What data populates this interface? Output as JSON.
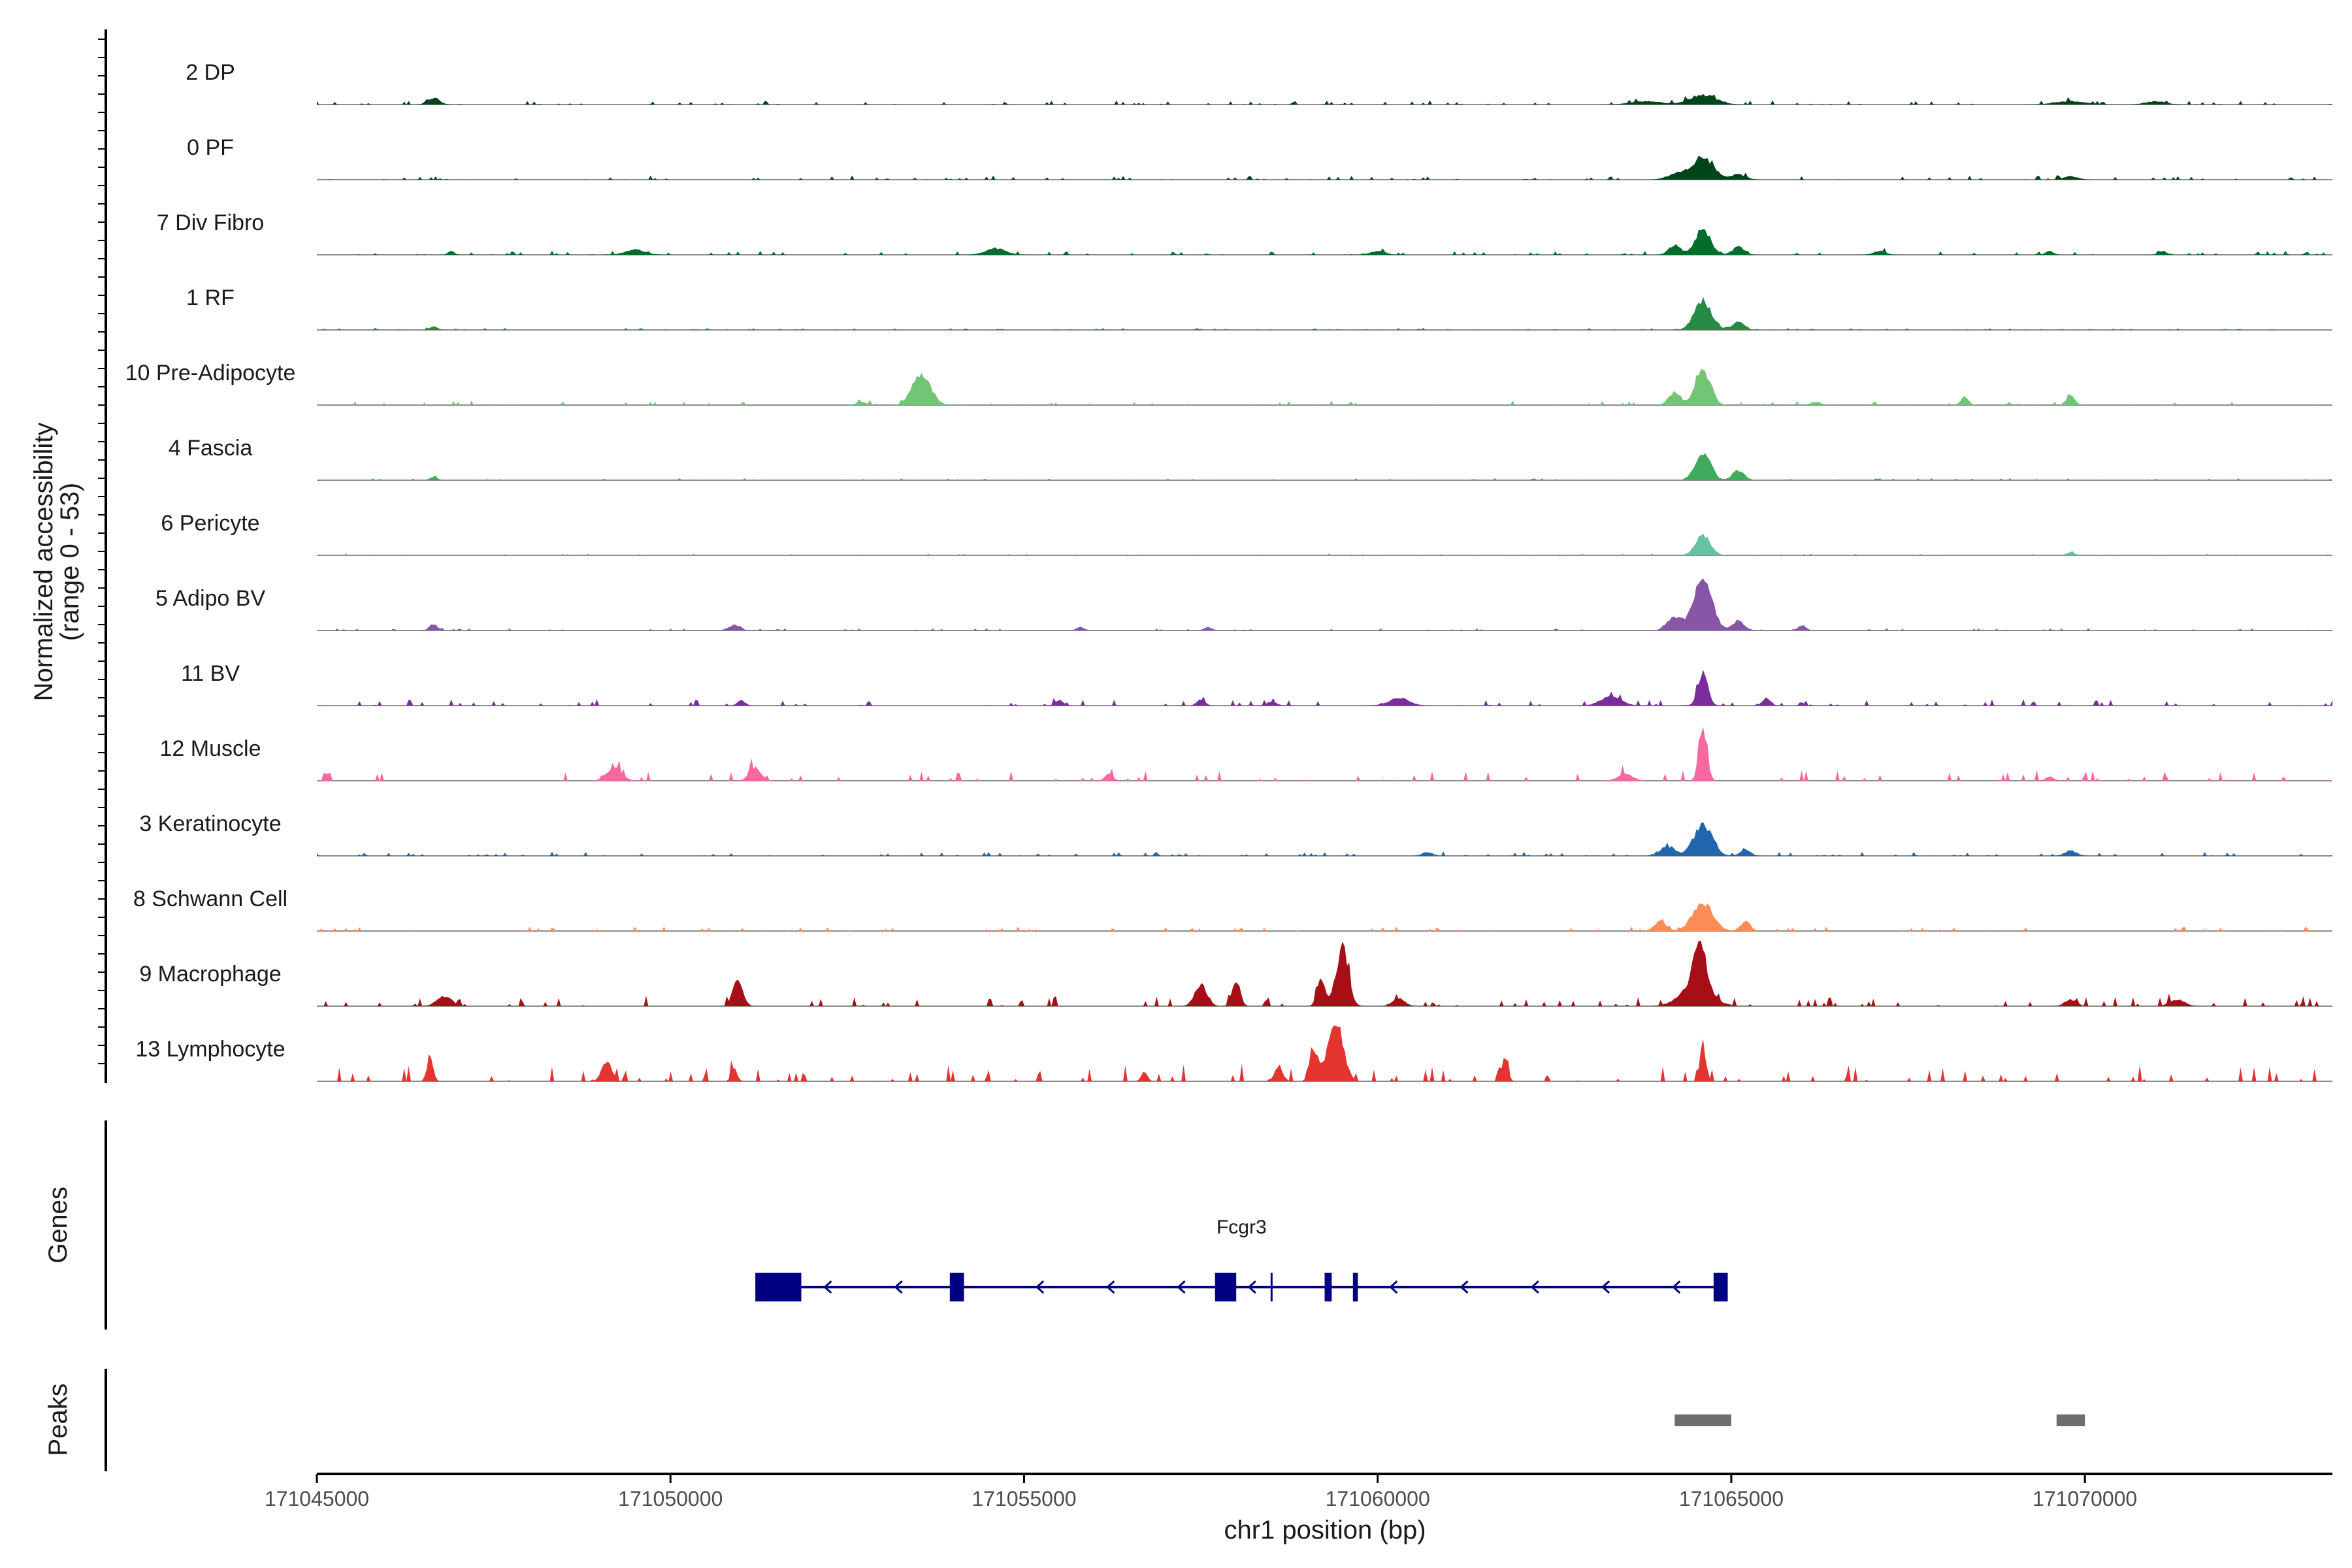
{
  "chart_data": {
    "type": "coverage",
    "ylabel_line1": "Normalized accessibility",
    "ylabel_line2": "(range 0 - 53)",
    "y_range": [
      0,
      53
    ],
    "xlabel": "chr1 position (bp)",
    "xlim": [
      171045000,
      171073500
    ],
    "xticks": [
      171045000,
      171050000,
      171055000,
      171060000,
      171065000,
      171070000
    ],
    "xtick_labels": [
      "171045000",
      "171050000",
      "171055000",
      "171060000",
      "171065000",
      "171070000"
    ],
    "tracks": [
      {
        "name": "2 DP",
        "color": "#00441b",
        "peaks": [
          [
            171046650,
            0.1,
            120
          ],
          [
            171064600,
            0.15,
            260
          ],
          [
            171063800,
            0.05,
            300
          ],
          [
            171069800,
            0.05,
            300
          ],
          [
            171071000,
            0.05,
            200
          ]
        ],
        "noise": 0.02
      },
      {
        "name": "0 PF",
        "color": "#00441b",
        "peaks": [
          [
            171064600,
            0.35,
            200
          ],
          [
            171064250,
            0.1,
            200
          ],
          [
            171065100,
            0.08,
            150
          ],
          [
            171069800,
            0.05,
            150
          ]
        ],
        "noise": 0.02
      },
      {
        "name": "7 Div Fibro",
        "color": "#006d2c",
        "peaks": [
          [
            171064600,
            0.4,
            150
          ],
          [
            171064200,
            0.15,
            120
          ],
          [
            171065100,
            0.12,
            120
          ],
          [
            171054600,
            0.1,
            200
          ],
          [
            171060000,
            0.06,
            150
          ],
          [
            171049500,
            0.08,
            200
          ],
          [
            171046900,
            0.06,
            60
          ],
          [
            171067100,
            0.06,
            120
          ],
          [
            171069500,
            0.06,
            80
          ],
          [
            171071100,
            0.06,
            80
          ]
        ],
        "noise": 0.02
      },
      {
        "name": "1 RF",
        "color": "#238b45",
        "peaks": [
          [
            171064600,
            0.45,
            170
          ],
          [
            171065100,
            0.12,
            120
          ],
          [
            171046650,
            0.05,
            80
          ]
        ],
        "noise": 0.01
      },
      {
        "name": "10 Pre-Adipocyte",
        "color": "#74c476",
        "peaks": [
          [
            171053550,
            0.5,
            180
          ],
          [
            171064600,
            0.55,
            150
          ],
          [
            171064200,
            0.2,
            120
          ],
          [
            171068300,
            0.12,
            80
          ],
          [
            171069800,
            0.15,
            80
          ],
          [
            171052700,
            0.05,
            100
          ],
          [
            171066200,
            0.05,
            100
          ]
        ],
        "noise": 0.02
      },
      {
        "name": "4 Fascia",
        "color": "#41ab5d",
        "peaks": [
          [
            171064600,
            0.45,
            150
          ],
          [
            171065100,
            0.15,
            120
          ],
          [
            171046650,
            0.05,
            80
          ]
        ],
        "noise": 0.01
      },
      {
        "name": "6 Pericyte",
        "color": "#66c2a4",
        "peaks": [
          [
            171064600,
            0.3,
            150
          ],
          [
            171069800,
            0.05,
            80
          ]
        ],
        "noise": 0.01
      },
      {
        "name": "5 Adipo BV",
        "color": "#8856a7",
        "peaks": [
          [
            171064600,
            0.8,
            180
          ],
          [
            171064200,
            0.2,
            150
          ],
          [
            171065100,
            0.15,
            120
          ],
          [
            171046650,
            0.1,
            80
          ],
          [
            171050900,
            0.08,
            120
          ],
          [
            171066000,
            0.08,
            80
          ],
          [
            171055800,
            0.05,
            80
          ],
          [
            171057600,
            0.05,
            80
          ]
        ],
        "noise": 0.01
      },
      {
        "name": "11 BV",
        "color": "#7b2d9b",
        "peaks": [
          [
            171064600,
            0.5,
            100
          ],
          [
            171063300,
            0.15,
            200
          ],
          [
            171060300,
            0.12,
            200
          ],
          [
            171065500,
            0.12,
            80
          ],
          [
            171057500,
            0.1,
            80
          ],
          [
            171051000,
            0.08,
            80
          ],
          [
            171055500,
            0.08,
            80
          ],
          [
            171058500,
            0.06,
            100
          ]
        ],
        "noise": 0.03
      },
      {
        "name": "12 Muscle",
        "color": "#f768a1",
        "peaks": [
          [
            171064600,
            0.8,
            80
          ],
          [
            171049200,
            0.2,
            150
          ],
          [
            171051200,
            0.2,
            120
          ],
          [
            171063500,
            0.1,
            150
          ],
          [
            171056200,
            0.1,
            80
          ],
          [
            171069500,
            0.06,
            80
          ]
        ],
        "noise": 0.05
      },
      {
        "name": "3 Keratinocyte",
        "color": "#2166ac",
        "peaks": [
          [
            171064600,
            0.5,
            180
          ],
          [
            171064100,
            0.15,
            150
          ],
          [
            171065200,
            0.1,
            100
          ],
          [
            171060700,
            0.06,
            100
          ],
          [
            171069800,
            0.08,
            120
          ]
        ],
        "noise": 0.02
      },
      {
        "name": "8 Schwann Cell",
        "color": "#fc8d59",
        "peaks": [
          [
            171064600,
            0.45,
            200
          ],
          [
            171064000,
            0.15,
            120
          ],
          [
            171065200,
            0.15,
            100
          ]
        ],
        "noise": 0.02
      },
      {
        "name": "9 Macrophage",
        "color": "#a50f15",
        "peaks": [
          [
            171059500,
            0.95,
            120
          ],
          [
            171064550,
            0.75,
            120
          ],
          [
            171064500,
            0.3,
            300
          ],
          [
            171057500,
            0.35,
            120
          ],
          [
            171058000,
            0.4,
            80
          ],
          [
            171050950,
            0.4,
            100
          ],
          [
            171059200,
            0.4,
            80
          ],
          [
            171060300,
            0.12,
            120
          ],
          [
            171046800,
            0.15,
            150
          ],
          [
            171069800,
            0.1,
            120
          ],
          [
            171071300,
            0.1,
            150
          ]
        ],
        "noise": 0.05
      },
      {
        "name": "13 Lymphocyte",
        "color": "#e3342f",
        "peaks": [
          [
            171059400,
            0.95,
            150
          ],
          [
            171059100,
            0.45,
            80
          ],
          [
            171058600,
            0.25,
            80
          ],
          [
            171064600,
            0.55,
            60
          ],
          [
            171046600,
            0.4,
            60
          ],
          [
            171049100,
            0.3,
            100
          ],
          [
            171061800,
            0.35,
            60
          ],
          [
            171050900,
            0.2,
            60
          ],
          [
            171056700,
            0.15,
            60
          ]
        ],
        "noise": 0.08
      }
    ],
    "gene_track_label": "Genes",
    "gene_name": "Fcgr3",
    "gene": {
      "start": 171051200,
      "end": 171064950,
      "strand": "-",
      "exons": [
        [
          171051200,
          171051850
        ],
        [
          171053950,
          171054150
        ],
        [
          171057700,
          171058000
        ],
        [
          171059250,
          171059350
        ],
        [
          171059650,
          171059720
        ],
        [
          171064750,
          171064950
        ]
      ],
      "extra_mark": 171058500
    },
    "peaks_track_label": "Peaks",
    "peak_regions": [
      [
        171064200,
        171065000
      ],
      [
        171069600,
        171070000
      ]
    ]
  },
  "colors": {
    "gene": "#000080",
    "peak": "#6e6e6e",
    "baseline": "#8c8c8c",
    "axis": "#000000"
  }
}
